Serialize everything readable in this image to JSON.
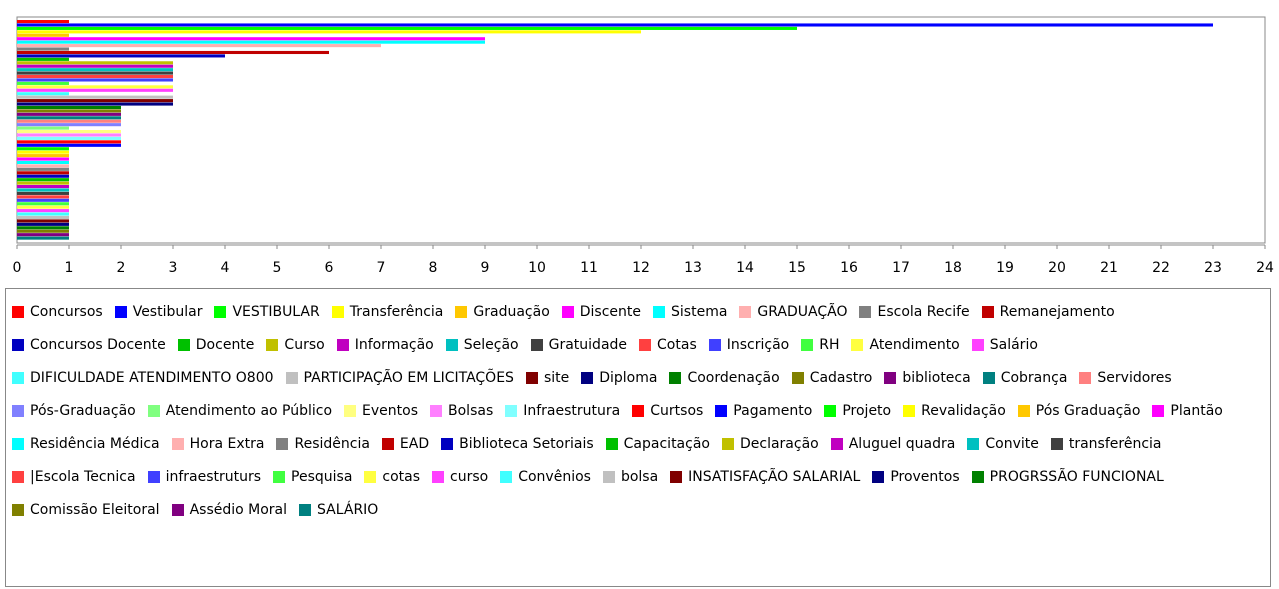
{
  "chart_data": {
    "type": "hbar",
    "xlim": [
      0,
      24
    ],
    "xticks": [
      0,
      1,
      2,
      3,
      4,
      5,
      6,
      7,
      8,
      9,
      10,
      11,
      12,
      13,
      14,
      15,
      16,
      17,
      18,
      19,
      20,
      21,
      22,
      23,
      24
    ],
    "series": [
      {
        "name": "Concursos",
        "color": "#FF0000",
        "values": [
          1
        ]
      },
      {
        "name": "Vestibular",
        "color": "#0000FF",
        "values": [
          23
        ]
      },
      {
        "name": "VESTIBULAR",
        "color": "#00FF00",
        "values": [
          15
        ]
      },
      {
        "name": "Transferência",
        "color": "#FFFF00",
        "values": [
          12
        ]
      },
      {
        "name": "Graduação",
        "color": "#FFC800",
        "values": [
          1
        ]
      },
      {
        "name": "Discente",
        "color": "#FF00FF",
        "values": [
          9
        ]
      },
      {
        "name": "Sistema",
        "color": "#00FFFF",
        "values": [
          9
        ]
      },
      {
        "name": "GRADUAÇÃO",
        "color": "#FFAFAF",
        "values": [
          7
        ]
      },
      {
        "name": "Escola Recife",
        "color": "#808080",
        "values": [
          1
        ]
      },
      {
        "name": "Remanejamento",
        "color": "#C00000",
        "values": [
          6
        ]
      },
      {
        "name": "Concursos Docente",
        "color": "#0000C0",
        "values": [
          4
        ]
      },
      {
        "name": "Docente",
        "color": "#00C000",
        "values": [
          1
        ]
      },
      {
        "name": "Curso",
        "color": "#C0C000",
        "values": [
          3
        ]
      },
      {
        "name": "Informação",
        "color": "#C000C0",
        "values": [
          3
        ]
      },
      {
        "name": "Seleção",
        "color": "#00C0C0",
        "values": [
          3
        ]
      },
      {
        "name": "Gratuidade",
        "color": "#404040",
        "values": [
          3
        ]
      },
      {
        "name": "Cotas",
        "color": "#FF4040",
        "values": [
          3
        ]
      },
      {
        "name": "Inscrição",
        "color": "#4040FF",
        "values": [
          3
        ]
      },
      {
        "name": "RH",
        "color": "#40FF40",
        "values": [
          1
        ]
      },
      {
        "name": "Atendimento",
        "color": "#FFFF40",
        "values": [
          3
        ]
      },
      {
        "name": "Salário",
        "color": "#FF40FF",
        "values": [
          3
        ]
      },
      {
        "name": "DIFICULDADE ATENDIMENTO O800",
        "color": "#40FFFF",
        "values": [
          1
        ]
      },
      {
        "name": "PARTICIPAÇÃO EM LICITAÇÕES",
        "color": "#C0C0C0",
        "values": [
          3
        ]
      },
      {
        "name": "site",
        "color": "#800000",
        "values": [
          3
        ]
      },
      {
        "name": "Diploma",
        "color": "#000080",
        "values": [
          3
        ]
      },
      {
        "name": "Coordenação",
        "color": "#008000",
        "values": [
          2
        ]
      },
      {
        "name": "Cadastro",
        "color": "#808000",
        "values": [
          2
        ]
      },
      {
        "name": "biblioteca",
        "color": "#800080",
        "values": [
          2
        ]
      },
      {
        "name": "Cobrança",
        "color": "#008080",
        "values": [
          2
        ]
      },
      {
        "name": "Servidores",
        "color": "#FF8080",
        "values": [
          2
        ]
      },
      {
        "name": "Pós-Graduação",
        "color": "#8080FF",
        "values": [
          2
        ]
      },
      {
        "name": "Atendimento ao Público",
        "color": "#80FF80",
        "values": [
          1
        ]
      },
      {
        "name": "Eventos",
        "color": "#FFFF80",
        "values": [
          2
        ]
      },
      {
        "name": "Bolsas",
        "color": "#FF80FF",
        "values": [
          2
        ]
      },
      {
        "name": "Infraestrutura",
        "color": "#80FFFF",
        "values": [
          2
        ]
      },
      {
        "name": "Curtsos",
        "color": "#FF0000",
        "values": [
          2
        ]
      },
      {
        "name": "Pagamento",
        "color": "#0000FF",
        "values": [
          2
        ]
      },
      {
        "name": "Projeto",
        "color": "#00FF00",
        "values": [
          1
        ]
      },
      {
        "name": "Revalidação",
        "color": "#FFFF00",
        "values": [
          1
        ]
      },
      {
        "name": "Pós Graduação",
        "color": "#FFC800",
        "values": [
          1
        ]
      },
      {
        "name": "Plantão",
        "color": "#FF00FF",
        "values": [
          1
        ]
      },
      {
        "name": "Residência Médica",
        "color": "#00FFFF",
        "values": [
          1
        ]
      },
      {
        "name": "Hora Extra",
        "color": "#FFAFAF",
        "values": [
          1
        ]
      },
      {
        "name": "Residência",
        "color": "#808080",
        "values": [
          1
        ]
      },
      {
        "name": "EAD",
        "color": "#C00000",
        "values": [
          1
        ]
      },
      {
        "name": "Biblioteca Setoriais",
        "color": "#0000C0",
        "values": [
          1
        ]
      },
      {
        "name": "Capacitação",
        "color": "#00C000",
        "values": [
          1
        ]
      },
      {
        "name": "Declaração",
        "color": "#C0C000",
        "values": [
          1
        ]
      },
      {
        "name": "Aluguel quadra",
        "color": "#C000C0",
        "values": [
          1
        ]
      },
      {
        "name": "Convite",
        "color": "#00C0C0",
        "values": [
          1
        ]
      },
      {
        "name": "transferência",
        "color": "#404040",
        "values": [
          1
        ]
      },
      {
        "name": "|Escola Tecnica",
        "color": "#FF4040",
        "values": [
          1
        ]
      },
      {
        "name": "infraestruturs",
        "color": "#4040FF",
        "values": [
          1
        ]
      },
      {
        "name": "Pesquisa",
        "color": "#40FF40",
        "values": [
          1
        ]
      },
      {
        "name": "cotas",
        "color": "#FFFF40",
        "values": [
          1
        ]
      },
      {
        "name": "curso",
        "color": "#FF40FF",
        "values": [
          1
        ]
      },
      {
        "name": "Convênios",
        "color": "#40FFFF",
        "values": [
          1
        ]
      },
      {
        "name": "bolsa",
        "color": "#C0C0C0",
        "values": [
          1
        ]
      },
      {
        "name": "INSATISFAÇÃO SALARIAL",
        "color": "#800000",
        "values": [
          1
        ]
      },
      {
        "name": "Proventos",
        "color": "#000080",
        "values": [
          1
        ]
      },
      {
        "name": "PROGRSSÃO FUNCIONAL",
        "color": "#008000",
        "values": [
          1
        ]
      },
      {
        "name": "Comissão Eleitoral",
        "color": "#808000",
        "values": [
          1
        ]
      },
      {
        "name": "Assédio Moral",
        "color": "#800080",
        "values": [
          1
        ]
      },
      {
        "name": "SALÁRIO",
        "color": "#008080",
        "values": [
          1
        ]
      }
    ]
  }
}
